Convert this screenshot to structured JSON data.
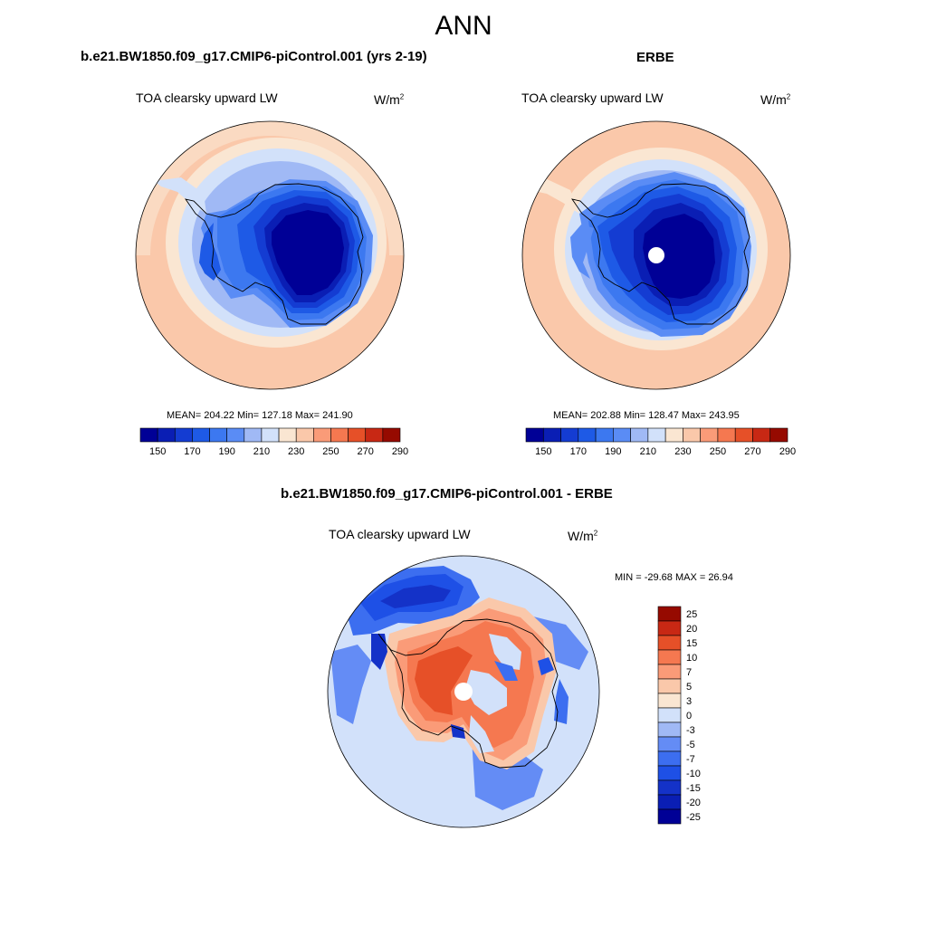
{
  "title": "ANN",
  "panels": [
    {
      "title": "b.e21.BW1850.f09_g17.CMIP6-piControl.001 (yrs 2-19)",
      "var_label": "TOA clearsky upward LW",
      "units_base": "W/m",
      "units_exp": "2",
      "stats": "MEAN= 204.22  Min= 127.18  Max= 241.90"
    },
    {
      "title": "ERBE",
      "var_label": "TOA clearsky upward LW",
      "units_base": "W/m",
      "units_exp": "2",
      "stats": "MEAN= 202.88  Min= 128.47  Max= 243.95"
    },
    {
      "title": "b.e21.BW1850.f09_g17.CMIP6-piControl.001 - ERBE",
      "var_label": "TOA clearsky upward LW",
      "units_base": "W/m",
      "units_exp": "2",
      "stats": "MIN = -29.68 MAX =  26.94"
    }
  ],
  "colors": {
    "abs_levels": [
      "#000096",
      "#0a1eb4",
      "#143cd2",
      "#1e5ae6",
      "#3c78f0",
      "#5a8cf5",
      "#a0b9f5",
      "#d2e1fa",
      "#fae6d2",
      "#fac8aa",
      "#fa9b78",
      "#f57850",
      "#e65028",
      "#c82814",
      "#960a00"
    ],
    "diff_levels": [
      "#000096",
      "#0a1eb4",
      "#1432c8",
      "#1e50e6",
      "#3c6ef0",
      "#648cf5",
      "#a0b9f5",
      "#d2e1fa",
      "#fae6d2",
      "#fac8aa",
      "#fa9b78",
      "#f57850",
      "#e65028",
      "#c82814",
      "#960a00"
    ]
  },
  "chart_data": [
    {
      "type": "heatmap",
      "title": "b.e21.BW1850.f09_g17.CMIP6-piControl.001 (yrs 2-19)",
      "projection": "south polar stereographic",
      "variable": "TOA clearsky upward LW",
      "units": "W/m2",
      "stats": {
        "mean": 204.22,
        "min": 127.18,
        "max": 241.9
      },
      "colorbar": {
        "orientation": "horizontal",
        "tick_labels": [
          "150",
          "170",
          "190",
          "210",
          "230",
          "250",
          "270",
          "290"
        ]
      }
    },
    {
      "type": "heatmap",
      "title": "ERBE",
      "projection": "south polar stereographic",
      "variable": "TOA clearsky upward LW",
      "units": "W/m2",
      "stats": {
        "mean": 202.88,
        "min": 128.47,
        "max": 243.95
      },
      "colorbar": {
        "orientation": "horizontal",
        "tick_labels": [
          "150",
          "170",
          "190",
          "210",
          "230",
          "250",
          "270",
          "290"
        ]
      }
    },
    {
      "type": "heatmap",
      "title": "b.e21.BW1850.f09_g17.CMIP6-piControl.001 - ERBE",
      "projection": "south polar stereographic",
      "variable": "TOA clearsky upward LW",
      "units": "W/m2",
      "stats": {
        "min": -29.68,
        "max": 26.94
      },
      "colorbar": {
        "orientation": "vertical",
        "tick_labels": [
          "25",
          "20",
          "15",
          "10",
          "7",
          "5",
          "3",
          "0",
          "-3",
          "-5",
          "-7",
          "-10",
          "-15",
          "-20",
          "-25"
        ]
      }
    }
  ]
}
